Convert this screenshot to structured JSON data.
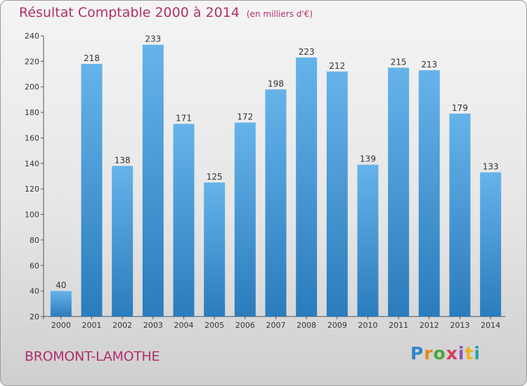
{
  "header": {
    "title": "Résultat Comptable 2000 à 2014",
    "unit": "(en milliers d'€)"
  },
  "footer": {
    "city": "BROMONT-LAMOTHE",
    "logo": "Proxiti"
  },
  "colors": {
    "bar_top": "#66b3ea",
    "bar_bottom": "#2b7cbd",
    "title": "#b0306e"
  },
  "chart_data": {
    "type": "bar",
    "title": "Résultat Comptable 2000 à 2014",
    "subtitle": "(en milliers d'€)",
    "categories": [
      "2000",
      "2001",
      "2002",
      "2003",
      "2004",
      "2005",
      "2006",
      "2007",
      "2008",
      "2009",
      "2010",
      "2011",
      "2012",
      "2013",
      "2014"
    ],
    "values": [
      40,
      218,
      138,
      233,
      171,
      125,
      172,
      198,
      223,
      212,
      139,
      215,
      213,
      179,
      133
    ],
    "ylim": [
      20,
      240
    ],
    "yticks": [
      20,
      40,
      60,
      80,
      100,
      120,
      140,
      160,
      180,
      200,
      220,
      240
    ],
    "grid": false,
    "data_labels": true
  }
}
